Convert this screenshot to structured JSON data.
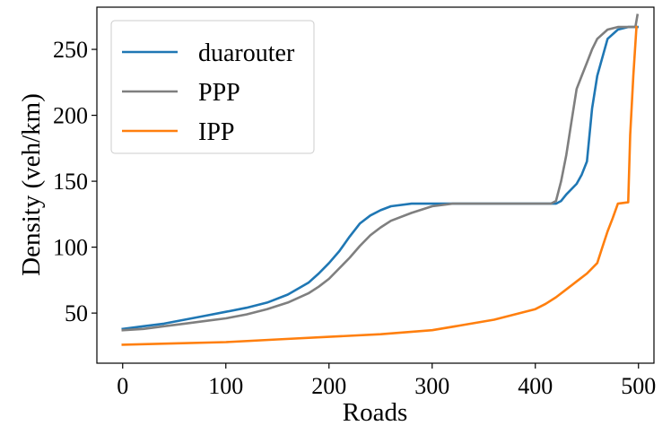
{
  "chart_data": {
    "type": "line",
    "xlabel": "Roads",
    "ylabel": "Density (veh/km)",
    "xlim": [
      -25,
      515
    ],
    "ylim": [
      12,
      282
    ],
    "xticks": [
      0,
      100,
      200,
      300,
      400,
      500
    ],
    "yticks": [
      50,
      100,
      150,
      200,
      250
    ],
    "grid": false,
    "legend_position": "top-left",
    "series": [
      {
        "name": "duarouter",
        "color": "#1f77b4",
        "x": [
          0,
          20,
          40,
          60,
          80,
          100,
          120,
          140,
          160,
          180,
          190,
          200,
          210,
          220,
          230,
          240,
          250,
          260,
          280,
          300,
          320,
          350,
          380,
          400,
          420,
          425,
          430,
          440,
          445,
          450,
          455,
          460,
          470,
          480,
          490,
          499
        ],
        "y": [
          38,
          40,
          42,
          45,
          48,
          51,
          54,
          58,
          64,
          73,
          80,
          88,
          97,
          108,
          118,
          124,
          128,
          131,
          133,
          133,
          133,
          133,
          133,
          133,
          133,
          135,
          140,
          148,
          155,
          165,
          205,
          230,
          258,
          265,
          267,
          267
        ]
      },
      {
        "name": "PPP",
        "color": "#7f7f7f",
        "x": [
          0,
          20,
          40,
          60,
          80,
          100,
          120,
          140,
          160,
          180,
          190,
          200,
          210,
          220,
          230,
          240,
          250,
          260,
          280,
          300,
          320,
          350,
          380,
          400,
          415,
          420,
          425,
          430,
          435,
          440,
          445,
          450,
          455,
          460,
          470,
          480,
          490,
          497,
          499
        ],
        "y": [
          37,
          38,
          40,
          42,
          44,
          46,
          49,
          53,
          58,
          65,
          70,
          76,
          84,
          92,
          101,
          109,
          115,
          120,
          126,
          131,
          133,
          133,
          133,
          133,
          133,
          135,
          150,
          170,
          195,
          220,
          230,
          240,
          250,
          258,
          265,
          267,
          267,
          267,
          276
        ]
      },
      {
        "name": "IPP",
        "color": "#ff7f0e",
        "x": [
          0,
          50,
          100,
          150,
          200,
          250,
          300,
          330,
          360,
          380,
          400,
          410,
          420,
          430,
          440,
          450,
          460,
          465,
          470,
          475,
          480,
          490,
          492,
          495,
          498
        ],
        "y": [
          26,
          27,
          28,
          30,
          32,
          34,
          37,
          41,
          45,
          49,
          53,
          57,
          62,
          68,
          74,
          80,
          88,
          100,
          112,
          122,
          133,
          134,
          185,
          230,
          267
        ]
      }
    ]
  }
}
